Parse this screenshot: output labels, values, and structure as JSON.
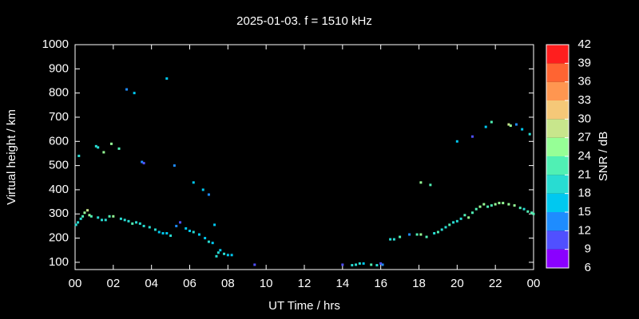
{
  "chart_data": {
    "type": "scatter",
    "title": "2025-01-03. f = 1510 kHz",
    "x_label": "UT Time / hrs",
    "y_label": "Virtual height / km",
    "colorbar_label": "SNR / dB",
    "xlim": [
      0,
      24
    ],
    "xticks": [
      {
        "value": 0,
        "label": "00"
      },
      {
        "value": 2,
        "label": "02"
      },
      {
        "value": 4,
        "label": "04"
      },
      {
        "value": 6,
        "label": "06"
      },
      {
        "value": 8,
        "label": "08"
      },
      10,
      12,
      14,
      16,
      18,
      20,
      22,
      {
        "value": 24,
        "label": "00"
      }
    ],
    "ylim": [
      70,
      1000
    ],
    "yticks": [
      100,
      200,
      300,
      400,
      500,
      600,
      700,
      800,
      900,
      1000
    ],
    "clim": [
      6,
      42
    ],
    "cticks": [
      6,
      9,
      12,
      15,
      18,
      21,
      24,
      27,
      30,
      33,
      36,
      39,
      42
    ],
    "colors": [
      "#8a00ff",
      "#5050ff",
      "#1e8cff",
      "#00c8f0",
      "#28dcd2",
      "#50f0b4",
      "#96ff96",
      "#c8e68c",
      "#f5c878",
      "#ff9650",
      "#ff6432",
      "#ff1e1e"
    ],
    "x": [
      0.05,
      0.15,
      0.3,
      0.4,
      0.5,
      0.65,
      0.75,
      0.85,
      1.2,
      1.4,
      1.6,
      1.8,
      2.0,
      2.4,
      2.6,
      2.8,
      3.0,
      3.2,
      3.4,
      3.6,
      3.9,
      4.2,
      4.4,
      4.6,
      4.8,
      5.0,
      5.3,
      5.5,
      5.8,
      6.0,
      6.2,
      6.5,
      6.8,
      7.0,
      7.2,
      7.4,
      7.5,
      7.6,
      7.8,
      8.0,
      8.2,
      9.4,
      14.0,
      14.5,
      14.7,
      14.9,
      15.1,
      15.5,
      15.8,
      16.0,
      16.1,
      16.5,
      16.7,
      17.0,
      17.5,
      17.9,
      18.1,
      18.4,
      18.8,
      19.0,
      19.2,
      19.4,
      19.6,
      19.8,
      20.0,
      20.2,
      20.4,
      20.6,
      20.8,
      21.0,
      21.2,
      21.4,
      21.6,
      21.8,
      22.0,
      22.2,
      22.4,
      22.7,
      23.0,
      23.3,
      23.5,
      23.7,
      23.9,
      24.0,
      0.2,
      1.1,
      1.2,
      1.5,
      1.9,
      2.3,
      2.7,
      3.1,
      3.5,
      3.6,
      4.8,
      5.2,
      6.2,
      6.7,
      7.0,
      7.3,
      18.1,
      18.6,
      20.0,
      20.8,
      21.5,
      21.8,
      22.7,
      22.8,
      23.1,
      23.4,
      23.8
    ],
    "values": [
      255,
      265,
      280,
      290,
      305,
      315,
      295,
      290,
      285,
      275,
      275,
      290,
      290,
      280,
      275,
      270,
      260,
      265,
      260,
      250,
      245,
      235,
      225,
      220,
      220,
      210,
      250,
      265,
      240,
      230,
      225,
      215,
      200,
      185,
      180,
      125,
      140,
      150,
      135,
      130,
      130,
      90,
      90,
      88,
      90,
      95,
      95,
      90,
      88,
      95,
      90,
      195,
      195,
      205,
      215,
      215,
      215,
      205,
      220,
      225,
      235,
      245,
      255,
      265,
      270,
      280,
      295,
      285,
      305,
      320,
      330,
      340,
      330,
      335,
      340,
      345,
      345,
      340,
      335,
      325,
      320,
      310,
      305,
      300,
      540,
      580,
      575,
      555,
      590,
      570,
      815,
      800,
      515,
      510,
      860,
      500,
      430,
      400,
      380,
      255,
      430,
      420,
      600,
      620,
      660,
      680,
      670,
      665,
      670,
      650,
      630
    ],
    "snr": [
      18,
      19,
      20,
      22,
      24,
      27,
      24,
      22,
      20,
      19,
      20,
      23,
      24,
      18,
      18,
      19,
      21,
      20,
      20,
      18,
      20,
      18,
      17,
      15,
      16,
      18,
      14,
      11,
      17,
      16,
      18,
      17,
      16,
      18,
      16,
      18,
      19,
      17,
      18,
      16,
      17,
      10,
      11,
      19,
      20,
      18,
      16,
      22,
      20,
      10,
      13,
      20,
      18,
      21,
      13,
      22,
      24,
      22,
      20,
      21,
      18,
      20,
      22,
      20,
      19,
      20,
      22,
      26,
      22,
      21,
      24,
      24,
      22,
      23,
      24,
      26,
      25,
      25,
      24,
      22,
      20,
      21,
      22,
      23,
      18,
      20,
      18,
      25,
      25,
      22,
      14,
      17,
      12,
      10,
      17,
      12,
      17,
      16,
      12,
      16,
      25,
      23,
      15,
      11,
      17,
      21,
      27,
      25,
      12,
      15,
      20
    ]
  }
}
